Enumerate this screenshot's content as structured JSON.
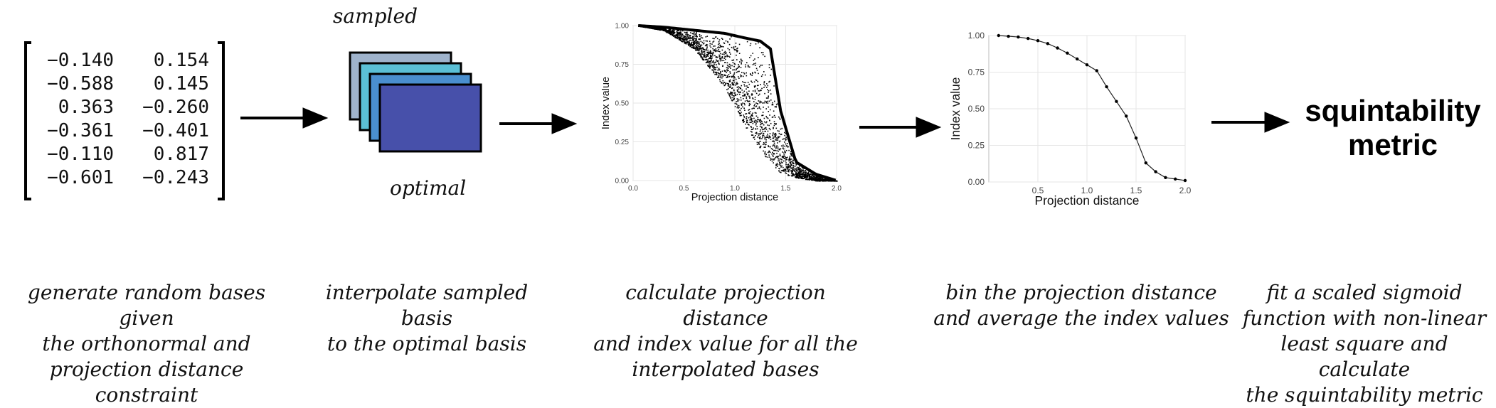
{
  "matrix": {
    "rows": [
      [
        "−0.140",
        "0.154"
      ],
      [
        "−0.588",
        "0.145"
      ],
      [
        "0.363",
        "−0.260"
      ],
      [
        "−0.361",
        "−0.401"
      ],
      [
        "−0.110",
        "0.817"
      ],
      [
        "−0.601",
        "−0.243"
      ]
    ]
  },
  "bases": {
    "top_label": "sampled",
    "bottom_label": "optimal",
    "colors": [
      "#9fb3cc",
      "#5bc0d6",
      "#4a8fcf",
      "#4750aa"
    ]
  },
  "metric": {
    "line1": "squintability",
    "line2": "metric"
  },
  "captions": [
    [
      "generate random bases given",
      "the orthonormal and",
      "projection distance constraint"
    ],
    [
      "interpolate sampled basis",
      "to the optimal basis"
    ],
    [
      "calculate projection distance",
      "and index value for all the",
      "interpolated bases"
    ],
    [
      "bin the projection distance",
      "and average the index values"
    ],
    [
      "fit a scaled sigmoid",
      "function with non-linear",
      "least square and calculate",
      "the squintability metric"
    ]
  ],
  "chart_data": [
    {
      "type": "scatter",
      "xlabel": "Projection distance",
      "ylabel": "Index value",
      "xlim": [
        0,
        2.0
      ],
      "ylim": [
        0,
        1.0
      ],
      "xticks": [
        "0.0",
        "0.5",
        "1.0",
        "1.5",
        "2.0"
      ],
      "yticks": [
        "0.00",
        "0.25",
        "0.50",
        "0.75",
        "1.00"
      ],
      "grid": true,
      "description_series": [
        {
          "x": [
            0.05,
            0.3,
            0.6,
            0.9,
            1.1,
            1.25,
            1.35,
            1.45,
            1.6,
            1.8,
            2.0
          ],
          "y_upper": [
            1.0,
            0.99,
            0.97,
            0.95,
            0.92,
            0.9,
            0.85,
            0.45,
            0.12,
            0.04,
            0.0
          ],
          "y_lower": [
            1.0,
            0.97,
            0.85,
            0.6,
            0.35,
            0.2,
            0.1,
            0.05,
            0.02,
            0.0,
            0.0
          ]
        }
      ]
    },
    {
      "type": "line",
      "xlabel": "Projection distance",
      "ylabel": "Index value",
      "xlim": [
        0,
        2.0
      ],
      "ylim": [
        0,
        1.0
      ],
      "xticks": [
        "0.5",
        "1.0",
        "1.5",
        "2.0"
      ],
      "yticks": [
        "0.00",
        "0.25",
        "0.50",
        "0.75",
        "1.00"
      ],
      "grid": true,
      "x": [
        0.1,
        0.2,
        0.3,
        0.4,
        0.5,
        0.6,
        0.7,
        0.8,
        0.9,
        1.0,
        1.1,
        1.2,
        1.3,
        1.4,
        1.5,
        1.6,
        1.7,
        1.8,
        1.9,
        2.0
      ],
      "y": [
        1.0,
        0.995,
        0.99,
        0.98,
        0.965,
        0.945,
        0.915,
        0.88,
        0.84,
        0.8,
        0.76,
        0.65,
        0.55,
        0.45,
        0.3,
        0.13,
        0.07,
        0.03,
        0.02,
        0.01
      ]
    }
  ]
}
